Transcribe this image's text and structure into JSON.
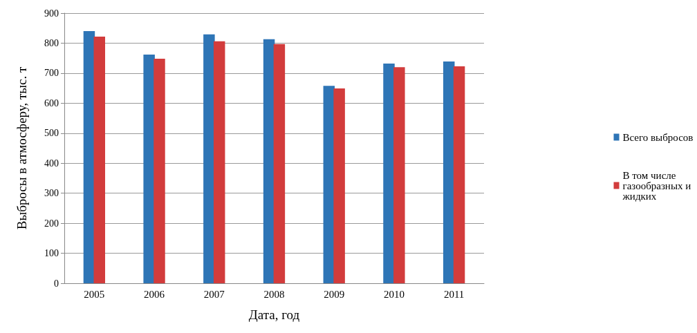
{
  "chart_data": {
    "type": "bar",
    "xlabel": "Дата, год",
    "ylabel": "Выбросы в атмосферу, тыс. т",
    "categories": [
      "2005",
      "2006",
      "2007",
      "2008",
      "2009",
      "2010",
      "2011"
    ],
    "series": [
      {
        "name": "Всего выбросов",
        "color": "#2e75b6",
        "values": [
          840,
          762,
          829,
          813,
          658,
          732,
          739
        ]
      },
      {
        "name": "В том числе газообразных и жидких",
        "color": "#d23c3c",
        "values": [
          822,
          748,
          806,
          797,
          649,
          720,
          723
        ]
      }
    ],
    "ylim": [
      0,
      900
    ],
    "yticks": [
      0,
      100,
      200,
      300,
      400,
      500,
      600,
      700,
      800,
      900
    ],
    "grid": "y",
    "legend": "right"
  }
}
